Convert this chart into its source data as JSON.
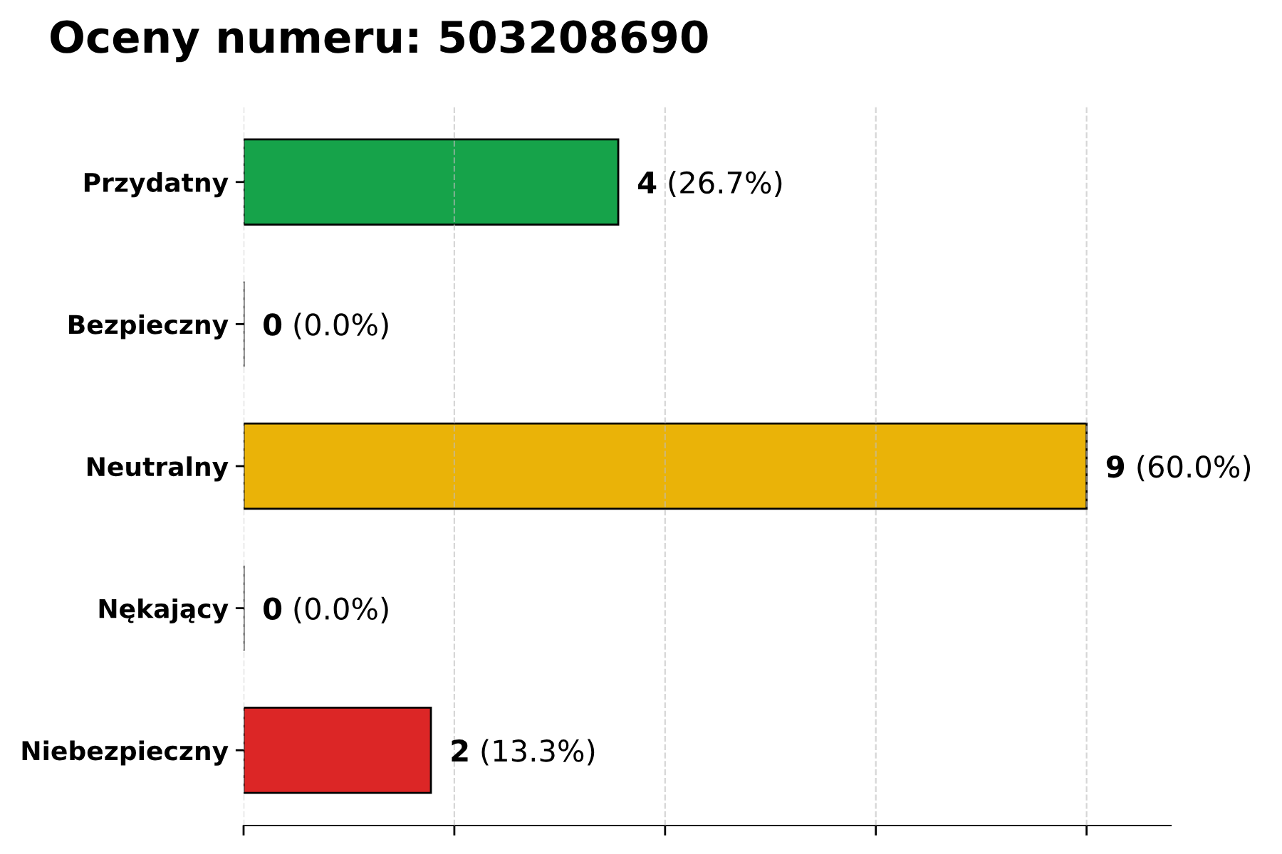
{
  "chart_data": {
    "type": "bar",
    "orientation": "horizontal",
    "title": "Oceny numeru: 503208690",
    "categories": [
      "Przydatny",
      "Bezpieczny",
      "Neutralny",
      "Nękający",
      "Niebezpieczny"
    ],
    "values": [
      4,
      0,
      9,
      0,
      2
    ],
    "colors": [
      "#16a34a",
      "#000000",
      "#eab308",
      "#000000",
      "#dc2626"
    ],
    "value_labels": [
      "4 (26.7%)",
      "0 (0.0%)",
      "9 (60.0%)",
      "0 (0.0%)",
      "2 (13.3%)"
    ],
    "xlim": [
      0,
      9.9
    ],
    "xticks": [
      {
        "value": 0,
        "label": null
      },
      {
        "value": 2.25,
        "label": null
      },
      {
        "value": 4.5,
        "label": null
      },
      {
        "value": 6.75,
        "label": null
      },
      {
        "value": 9,
        "label": null
      }
    ],
    "grid": "x",
    "tick_labels": "y"
  }
}
